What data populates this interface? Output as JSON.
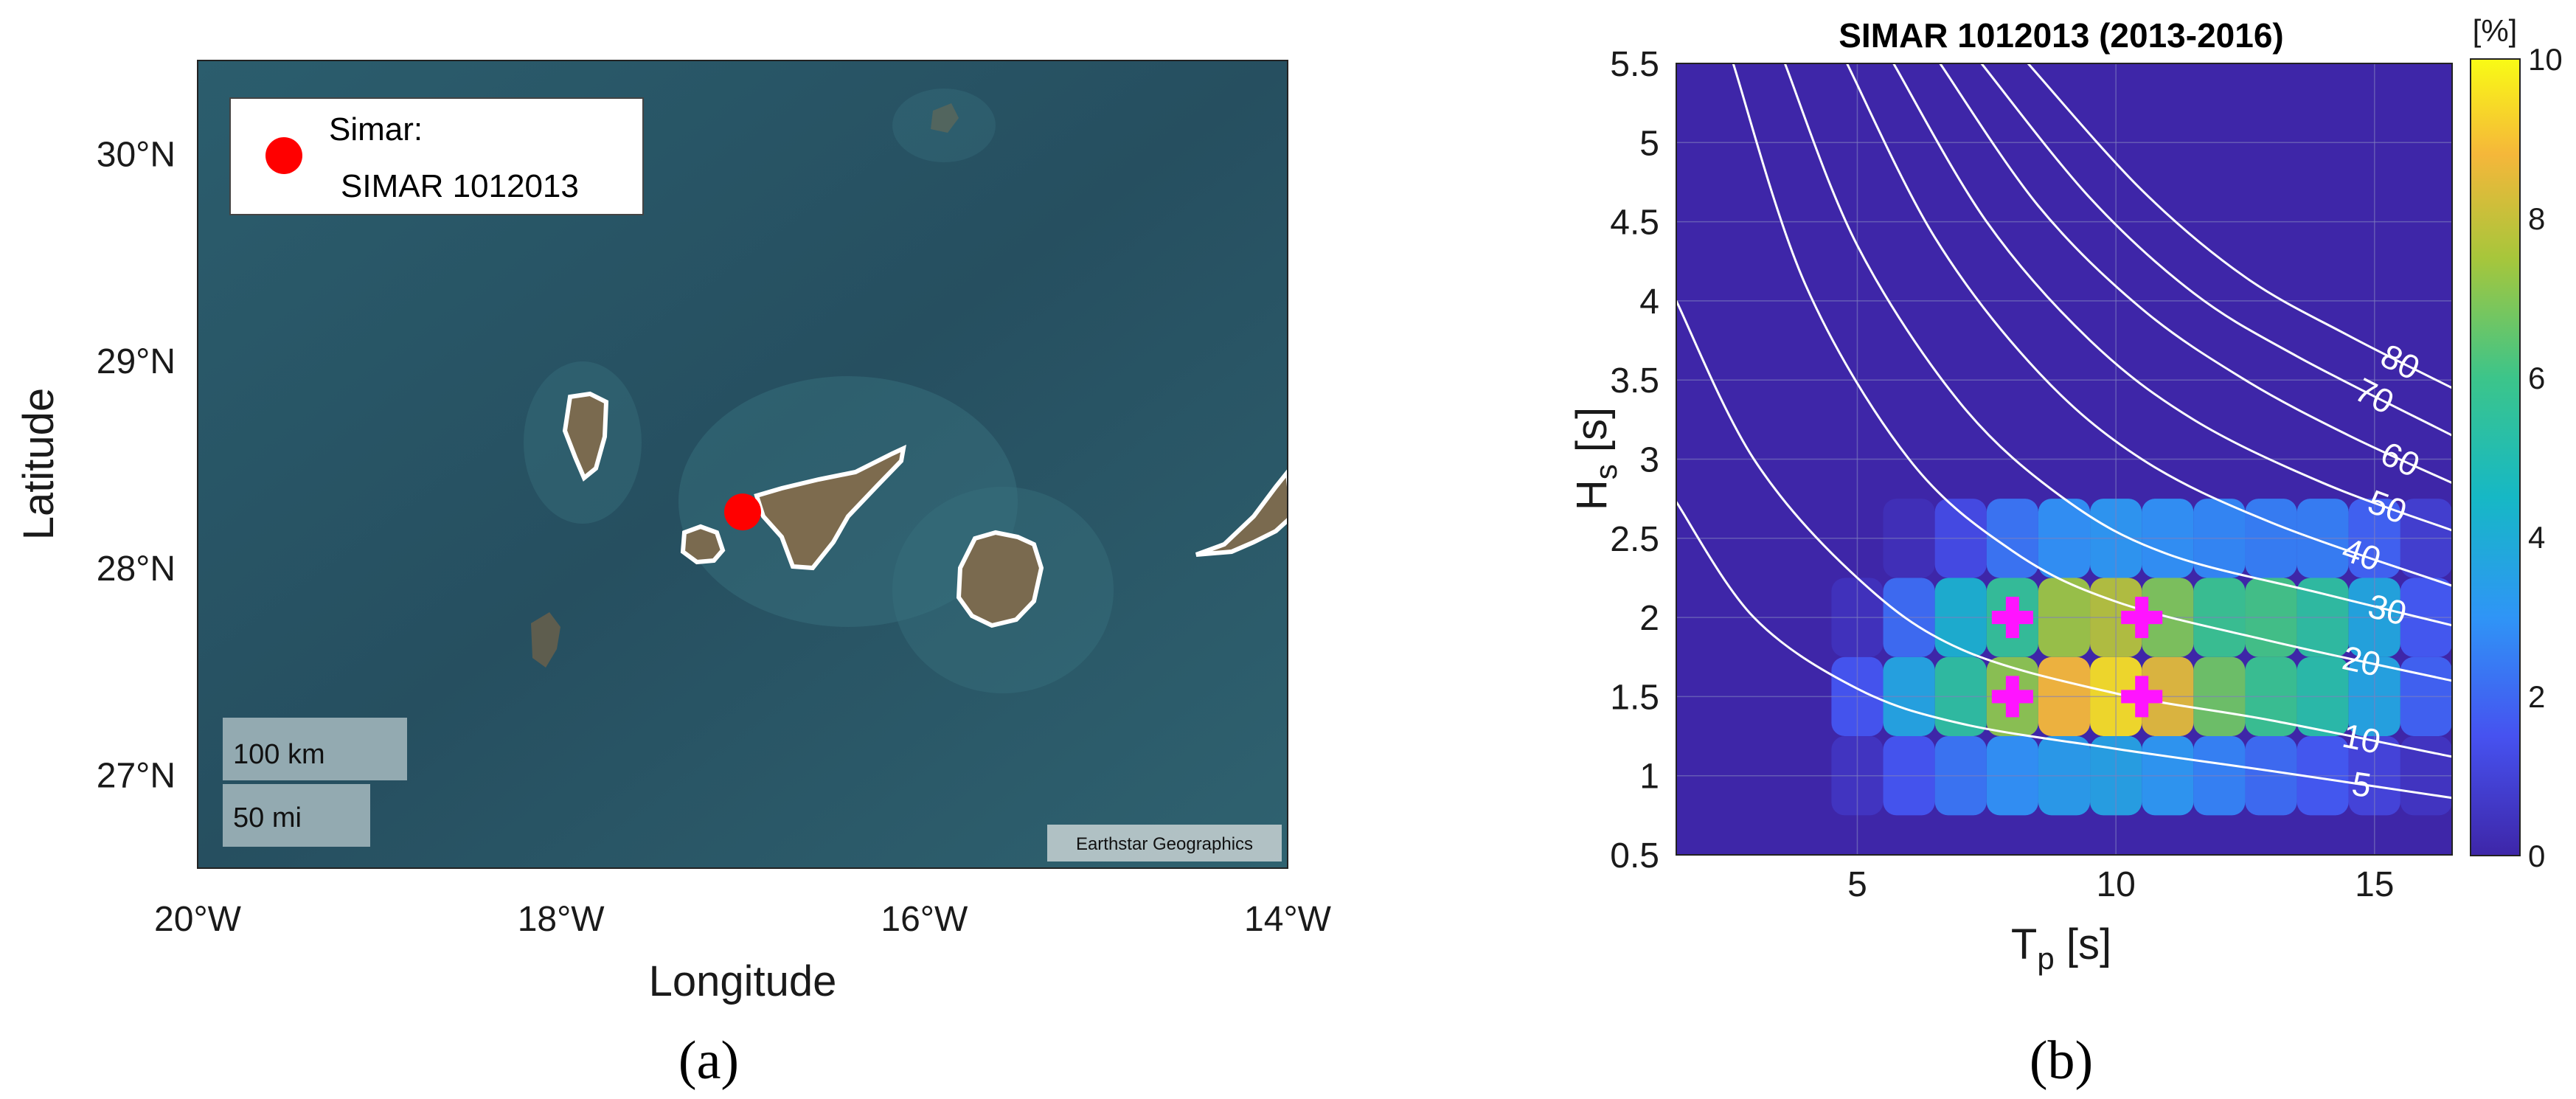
{
  "panel_a": {
    "panel_label": "(a)",
    "legend_marker_label": "Simar:",
    "legend_station": "SIMAR 1012013",
    "scale_km": "100 km",
    "scale_mi": "50 mi",
    "attribution": "Earthstar Geographics",
    "colors": {
      "ocean": "#275a6a",
      "land": "#7a6a4f",
      "coast": "#ffffff",
      "marker": "#ff0000"
    }
  },
  "panel_b": {
    "panel_label": "(b)",
    "colorbar_unit": "[%]",
    "colorbar_ticks": [
      "0",
      "2",
      "4",
      "6",
      "8",
      "10"
    ],
    "colorbar_colors": [
      "#3e26a8",
      "#4652f0",
      "#2f95f6",
      "#16b8c5",
      "#3cc58a",
      "#a7c63b",
      "#f5b73a",
      "#f9fb15"
    ],
    "marker_color": "#ff14ff"
  },
  "chart_data": [
    {
      "type": "scatter",
      "title": "",
      "xlabel": "Longitude",
      "ylabel": "Latitude",
      "xlim": [
        -20,
        -14
      ],
      "ylim": [
        26.55,
        30.45
      ],
      "xticks": [
        -20,
        -18,
        -16,
        -14
      ],
      "yticks": [
        27,
        28,
        29,
        30
      ],
      "xtick_labels": [
        "20°W",
        "18°W",
        "16°W",
        "14°W"
      ],
      "ytick_labels": [
        "27°N",
        "28°N",
        "29°N",
        "30°N"
      ],
      "series": [
        {
          "name": "SIMAR 1012013",
          "points": [
            {
              "lon": -17.0,
              "lat": 28.27
            }
          ]
        }
      ]
    },
    {
      "type": "heatmap",
      "title": "SIMAR 1012013 (2013-2016)",
      "xlabel": "T",
      "xlabel_sub": "p",
      "xlabel_unit": " [s]",
      "ylabel": "H",
      "ylabel_sub": "s",
      "ylabel_unit": " [s]",
      "xlim": [
        1.5,
        16.5
      ],
      "ylim": [
        0.5,
        5.5
      ],
      "xticks": [
        5,
        10,
        15
      ],
      "yticks": [
        0.5,
        1,
        1.5,
        2,
        2.5,
        3,
        3.5,
        4,
        4.5,
        5,
        5.5
      ],
      "ytick_labels": [
        "0.5",
        "1",
        "1.5",
        "2",
        "2.5",
        "3",
        "3.5",
        "4",
        "4.5",
        "5",
        "5.5"
      ],
      "grid": true,
      "colorbar_range": [
        0,
        10
      ],
      "colorbar_label": "[%]",
      "occurrence_percent": {
        "tp": [
          5,
          6,
          7,
          8,
          9,
          10,
          11,
          12,
          13,
          14,
          15,
          16
        ],
        "hs": [
          1.0,
          1.5,
          2.0,
          2.5
        ],
        "values": [
          [
            0.5,
            1.5,
            2.2,
            2.8,
            3.2,
            3.4,
            3.0,
            2.5,
            2.0,
            1.6,
            1.0,
            0.5
          ],
          [
            1.5,
            3.5,
            5.2,
            6.8,
            8.6,
            9.4,
            8.2,
            6.4,
            5.6,
            5.0,
            3.5,
            1.8
          ],
          [
            0.4,
            2.0,
            4.0,
            5.4,
            7.0,
            7.4,
            6.6,
            5.6,
            5.8,
            5.2,
            3.6,
            1.6
          ],
          [
            0.0,
            0.3,
            1.2,
            2.2,
            2.8,
            3.0,
            2.8,
            2.6,
            2.4,
            2.4,
            1.8,
            0.8
          ]
        ]
      },
      "markers": [
        {
          "tp": 8.0,
          "hs": 1.5
        },
        {
          "tp": 8.0,
          "hs": 2.0
        },
        {
          "tp": 10.5,
          "hs": 1.5
        },
        {
          "tp": 10.5,
          "hs": 2.0
        }
      ],
      "contours": [
        {
          "label": "5",
          "points": [
            [
              1.5,
              2.73
            ],
            [
              3,
              2.0
            ],
            [
              5,
              1.55
            ],
            [
              7,
              1.33
            ],
            [
              10,
              1.17
            ],
            [
              13,
              1.03
            ],
            [
              16.5,
              0.86
            ]
          ]
        },
        {
          "label": "10",
          "points": [
            [
              1.5,
              4.0
            ],
            [
              3,
              3.0
            ],
            [
              5,
              2.25
            ],
            [
              7,
              1.8
            ],
            [
              10,
              1.52
            ],
            [
              13,
              1.35
            ],
            [
              16.5,
              1.12
            ]
          ]
        },
        {
          "label": "20",
          "points": [
            [
              2.6,
              5.5
            ],
            [
              4,
              4.1
            ],
            [
              6,
              3.0
            ],
            [
              8,
              2.42
            ],
            [
              10,
              2.1
            ],
            [
              13,
              1.85
            ],
            [
              16.5,
              1.6
            ]
          ]
        },
        {
          "label": "30",
          "points": [
            [
              3.6,
              5.5
            ],
            [
              5,
              4.35
            ],
            [
              7,
              3.35
            ],
            [
              9,
              2.75
            ],
            [
              11,
              2.4
            ],
            [
              14,
              2.15
            ],
            [
              16.5,
              1.95
            ]
          ]
        },
        {
          "label": "40",
          "points": [
            [
              4.8,
              5.5
            ],
            [
              6.5,
              4.4
            ],
            [
              8.5,
              3.55
            ],
            [
              10.5,
              3.0
            ],
            [
              13,
              2.6
            ],
            [
              16.5,
              2.2
            ]
          ]
        },
        {
          "label": "50",
          "points": [
            [
              5.7,
              5.5
            ],
            [
              7.5,
              4.5
            ],
            [
              9.5,
              3.75
            ],
            [
              11.5,
              3.25
            ],
            [
              14,
              2.85
            ],
            [
              16.5,
              2.55
            ]
          ]
        },
        {
          "label": "60",
          "points": [
            [
              6.6,
              5.5
            ],
            [
              8.5,
              4.6
            ],
            [
              10.5,
              3.95
            ],
            [
              12.5,
              3.5
            ],
            [
              14.5,
              3.15
            ],
            [
              16.5,
              2.85
            ]
          ]
        },
        {
          "label": "70",
          "points": [
            [
              7.4,
              5.5
            ],
            [
              9.5,
              4.65
            ],
            [
              11.5,
              4.05
            ],
            [
              13.5,
              3.65
            ],
            [
              16.5,
              3.15
            ]
          ]
        },
        {
          "label": "80",
          "points": [
            [
              8.3,
              5.5
            ],
            [
              10.5,
              4.7
            ],
            [
              12.5,
              4.15
            ],
            [
              14.5,
              3.78
            ],
            [
              16.5,
              3.45
            ]
          ]
        }
      ]
    }
  ]
}
